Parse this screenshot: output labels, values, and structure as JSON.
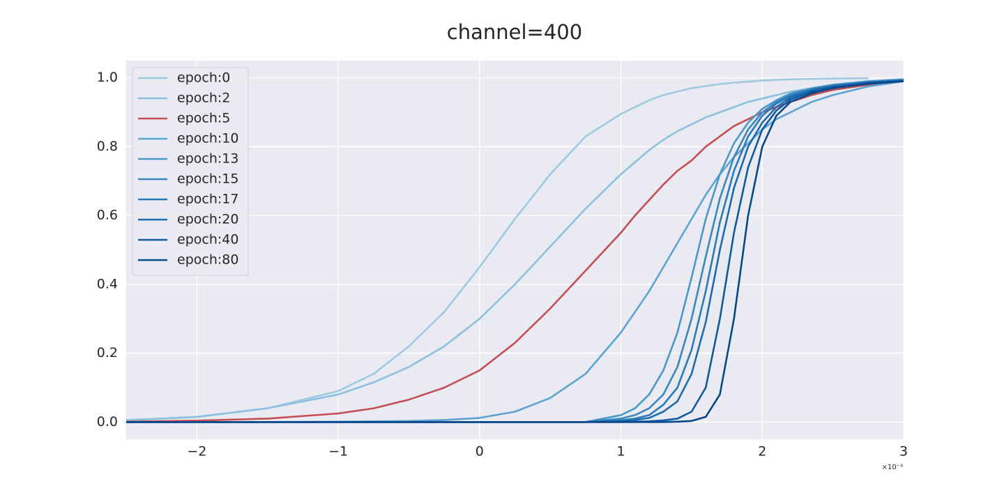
{
  "chart_data": {
    "type": "line",
    "title": "channel=400",
    "x_offset_label": "×10⁻³",
    "x": [
      -2.5,
      -2,
      -1.5,
      -1,
      -0.75,
      -0.5,
      -0.25,
      0,
      0.25,
      0.5,
      0.75,
      1,
      1.1,
      1.2,
      1.3,
      1.4,
      1.5,
      1.6,
      1.7,
      1.8,
      1.9,
      2,
      2.1,
      2.2,
      2.35,
      2.5,
      2.75,
      3
    ],
    "xlim": [
      -2.5,
      3
    ],
    "xticks": [
      {
        "value": -2,
        "label": "−2"
      },
      {
        "value": -1,
        "label": "−1"
      },
      0,
      1,
      2,
      3
    ],
    "ylim": [
      -0.05,
      1.05
    ],
    "yticks": [
      {
        "value": 0,
        "label": "0.0"
      },
      0.2,
      0.4,
      0.6,
      0.8,
      {
        "value": 1,
        "label": "1.0"
      }
    ],
    "grid": true,
    "legend": "upper left",
    "series": [
      {
        "name": "epoch:0",
        "color": "#9ecae1",
        "values": [
          0.006,
          0.015,
          0.04,
          0.09,
          0.14,
          0.22,
          0.32,
          0.45,
          0.59,
          0.72,
          0.83,
          0.895,
          0.915,
          0.935,
          0.95,
          0.96,
          0.97,
          0.976,
          0.982,
          0.986,
          0.989,
          0.992,
          0.994,
          0.996,
          0.997,
          0.998,
          0.999,
          null
        ]
      },
      {
        "name": "epoch:2",
        "color": "#8cc0dd",
        "values": [
          0.005,
          0.015,
          0.04,
          0.08,
          0.115,
          0.16,
          0.22,
          0.3,
          0.4,
          0.51,
          0.62,
          0.72,
          0.755,
          0.79,
          0.82,
          0.845,
          0.865,
          0.885,
          0.9,
          0.915,
          0.93,
          0.94,
          0.95,
          0.96,
          0.97,
          0.98,
          0.99,
          0.997
        ]
      },
      {
        "name": "epoch:5",
        "color": "#c44e52",
        "values": [
          0.001,
          0.004,
          0.01,
          0.025,
          0.04,
          0.065,
          0.1,
          0.15,
          0.23,
          0.33,
          0.44,
          0.55,
          0.6,
          0.645,
          0.69,
          0.73,
          0.76,
          0.8,
          0.83,
          0.86,
          0.88,
          0.9,
          0.915,
          0.93,
          0.95,
          0.965,
          0.98,
          0.99
        ]
      },
      {
        "name": "epoch:10",
        "color": "#5ba3d0",
        "values": [
          0,
          0,
          0,
          0.001,
          0.002,
          0.003,
          0.006,
          0.012,
          0.03,
          0.07,
          0.14,
          0.26,
          0.32,
          0.38,
          0.45,
          0.52,
          0.59,
          0.66,
          0.72,
          0.77,
          0.81,
          0.85,
          0.88,
          0.9,
          0.93,
          0.95,
          0.975,
          0.99
        ]
      },
      {
        "name": "epoch:13",
        "color": "#4a97c9",
        "values": [
          0,
          0,
          0,
          0,
          0,
          0,
          0,
          0,
          0,
          0,
          0,
          0.02,
          0.04,
          0.08,
          0.15,
          0.26,
          0.42,
          0.59,
          0.72,
          0.81,
          0.87,
          0.91,
          0.935,
          0.955,
          0.97,
          0.98,
          0.99,
          0.995
        ]
      },
      {
        "name": "epoch:15",
        "color": "#3987c0",
        "values": [
          0,
          0,
          0,
          0,
          0,
          0,
          0,
          0,
          0,
          0,
          0,
          0.01,
          0.02,
          0.04,
          0.08,
          0.16,
          0.3,
          0.48,
          0.65,
          0.77,
          0.85,
          0.9,
          0.93,
          0.95,
          0.968,
          0.978,
          0.988,
          0.994
        ]
      },
      {
        "name": "epoch:17",
        "color": "#2a7ab9",
        "values": [
          0,
          0,
          0,
          0,
          0,
          0,
          0,
          0,
          0,
          0,
          0,
          0.005,
          0.01,
          0.02,
          0.05,
          0.1,
          0.21,
          0.38,
          0.58,
          0.73,
          0.83,
          0.89,
          0.925,
          0.948,
          0.966,
          0.977,
          0.987,
          0.993
        ]
      },
      {
        "name": "epoch:20",
        "color": "#1c69ad",
        "values": [
          0,
          0,
          0,
          0,
          0,
          0,
          0,
          0,
          0,
          0,
          0,
          0.003,
          0.006,
          0.012,
          0.03,
          0.06,
          0.14,
          0.29,
          0.5,
          0.68,
          0.8,
          0.87,
          0.915,
          0.943,
          0.963,
          0.975,
          0.986,
          0.992
        ]
      },
      {
        "name": "epoch:40",
        "color": "#0e5aa0",
        "values": [
          0,
          0,
          0,
          0,
          0,
          0,
          0,
          0,
          0,
          0,
          0,
          0,
          0.001,
          0.002,
          0.005,
          0.01,
          0.03,
          0.1,
          0.3,
          0.55,
          0.74,
          0.85,
          0.905,
          0.937,
          0.96,
          0.973,
          0.985,
          0.991
        ]
      },
      {
        "name": "epoch:80",
        "color": "#08468a",
        "values": [
          0,
          0,
          0,
          0,
          0,
          0,
          0,
          0,
          0,
          0,
          0,
          0,
          0,
          0,
          0,
          0.001,
          0.003,
          0.015,
          0.08,
          0.3,
          0.6,
          0.8,
          0.89,
          0.93,
          0.955,
          0.97,
          0.983,
          0.99
        ]
      }
    ]
  }
}
